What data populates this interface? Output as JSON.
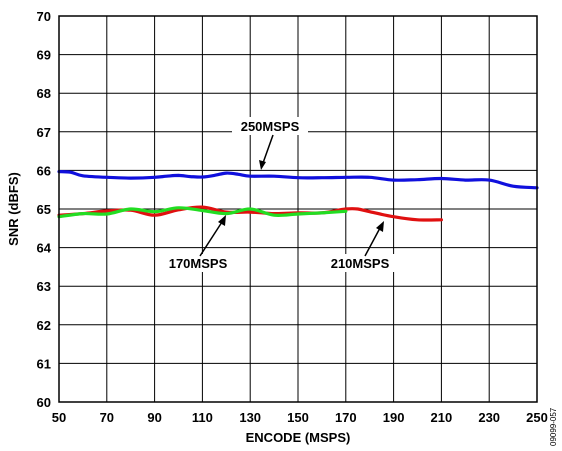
{
  "chart_data": {
    "type": "line",
    "title": "",
    "xlabel": "ENCODE (MSPS)",
    "ylabel": "SNR (dBFS)",
    "xlim": [
      50,
      250
    ],
    "ylim": [
      60,
      70
    ],
    "x_ticks": [
      "50",
      "70",
      "90",
      "110",
      "130",
      "150",
      "170",
      "190",
      "210",
      "230",
      "250"
    ],
    "y_ticks": [
      "60",
      "61",
      "62",
      "63",
      "64",
      "65",
      "66",
      "67",
      "68",
      "69",
      "70"
    ],
    "grid": true,
    "series": [
      {
        "name": "250MSPS",
        "color": "#1010dd",
        "x": [
          50,
          55,
          60,
          70,
          80,
          90,
          95,
          100,
          105,
          110,
          115,
          120,
          125,
          130,
          140,
          150,
          160,
          170,
          180,
          190,
          200,
          210,
          220,
          230,
          240,
          250
        ],
        "y": [
          65.97,
          65.95,
          65.86,
          65.82,
          65.8,
          65.82,
          65.85,
          65.87,
          65.84,
          65.83,
          65.87,
          65.93,
          65.9,
          65.85,
          65.85,
          65.81,
          65.81,
          65.82,
          65.82,
          65.75,
          65.76,
          65.79,
          65.75,
          65.75,
          65.59,
          65.55
        ]
      },
      {
        "name": "210MSPS",
        "color": "#e01010",
        "x": [
          50,
          60,
          70,
          80,
          90,
          100,
          110,
          120,
          130,
          140,
          150,
          160,
          170,
          175,
          180,
          190,
          200,
          210
        ],
        "y": [
          64.84,
          64.88,
          64.95,
          64.97,
          64.84,
          64.98,
          65.05,
          64.92,
          64.92,
          64.88,
          64.9,
          64.9,
          65.0,
          65.0,
          64.93,
          64.8,
          64.72,
          64.72
        ]
      },
      {
        "name": "170MSPS",
        "color": "#22dd22",
        "x": [
          50,
          60,
          70,
          80,
          90,
          100,
          110,
          120,
          130,
          140,
          150,
          160,
          170
        ],
        "y": [
          64.8,
          64.88,
          64.87,
          65.0,
          64.93,
          65.03,
          64.96,
          64.88,
          65.0,
          64.84,
          64.87,
          64.9,
          64.94
        ]
      }
    ],
    "annotations": [
      "250MSPS",
      "170MSPS",
      "210MSPS"
    ]
  },
  "figure_id": "09099-057"
}
